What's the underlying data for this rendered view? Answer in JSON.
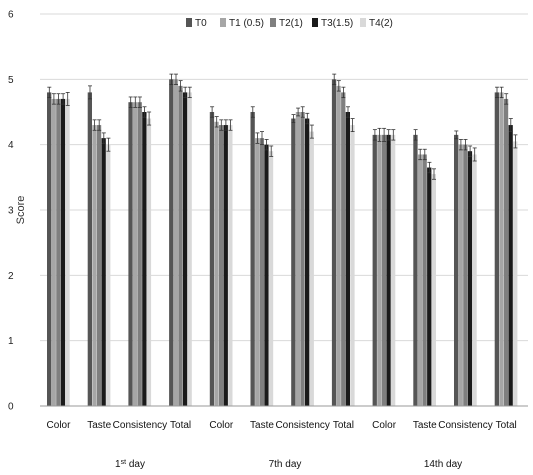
{
  "chart_data": {
    "type": "bar",
    "ylabel": "Score",
    "ylim": [
      0,
      6
    ],
    "yticks": [
      0,
      1,
      2,
      3,
      4,
      5,
      6
    ],
    "grid": true,
    "legend_position": "top-right",
    "categories": [
      "Color",
      "Taste",
      "Consistency",
      "Total",
      "Color",
      "Taste",
      "Consistency",
      "Total",
      "Color",
      "Taste",
      "Consistency",
      "Total"
    ],
    "groups": [
      {
        "label_prefix": "1",
        "label_sup": "st",
        "label_suffix": " day"
      },
      {
        "label_prefix": "7th day",
        "label_sup": "",
        "label_suffix": ""
      },
      {
        "label_prefix": "14th day",
        "label_sup": "",
        "label_suffix": ""
      }
    ],
    "series": [
      {
        "name": "T0",
        "color": "#555555",
        "values": [
          4.8,
          4.8,
          4.65,
          5.0,
          4.5,
          4.5,
          4.4,
          5.0,
          4.15,
          4.15,
          4.15,
          4.8
        ],
        "errors": [
          0.08,
          0.1,
          0.08,
          0.08,
          0.08,
          0.08,
          0.06,
          0.08,
          0.08,
          0.08,
          0.06,
          0.08
        ]
      },
      {
        "name": "T1 (0.5)",
        "color": "#a6a6a6",
        "values": [
          4.7,
          4.3,
          4.65,
          5.0,
          4.35,
          4.1,
          4.5,
          4.9,
          4.15,
          3.85,
          4.0,
          4.8
        ],
        "errors": [
          0.08,
          0.08,
          0.08,
          0.08,
          0.08,
          0.08,
          0.06,
          0.08,
          0.1,
          0.08,
          0.08,
          0.08
        ]
      },
      {
        "name": "T2(1)",
        "color": "#7f7f7f",
        "values": [
          4.7,
          4.3,
          4.65,
          4.9,
          4.3,
          4.1,
          4.5,
          4.8,
          4.15,
          3.85,
          4.0,
          4.7
        ],
        "errors": [
          0.08,
          0.08,
          0.08,
          0.08,
          0.08,
          0.1,
          0.08,
          0.08,
          0.1,
          0.08,
          0.08,
          0.08
        ]
      },
      {
        "name": "T3(1.5)",
        "color": "#1a1a1a",
        "values": [
          4.7,
          4.1,
          4.5,
          4.8,
          4.3,
          4.0,
          4.4,
          4.5,
          4.15,
          3.65,
          3.9,
          4.3
        ],
        "errors": [
          0.08,
          0.08,
          0.08,
          0.08,
          0.08,
          0.08,
          0.08,
          0.08,
          0.08,
          0.08,
          0.08,
          0.1
        ]
      },
      {
        "name": "T4(2)",
        "color": "#d9d9d9",
        "values": [
          4.7,
          4.0,
          4.4,
          4.8,
          4.3,
          3.9,
          4.2,
          4.3,
          4.15,
          3.55,
          3.85,
          4.05
        ],
        "errors": [
          0.1,
          0.1,
          0.1,
          0.08,
          0.08,
          0.08,
          0.1,
          0.1,
          0.08,
          0.08,
          0.1,
          0.1
        ]
      }
    ]
  }
}
